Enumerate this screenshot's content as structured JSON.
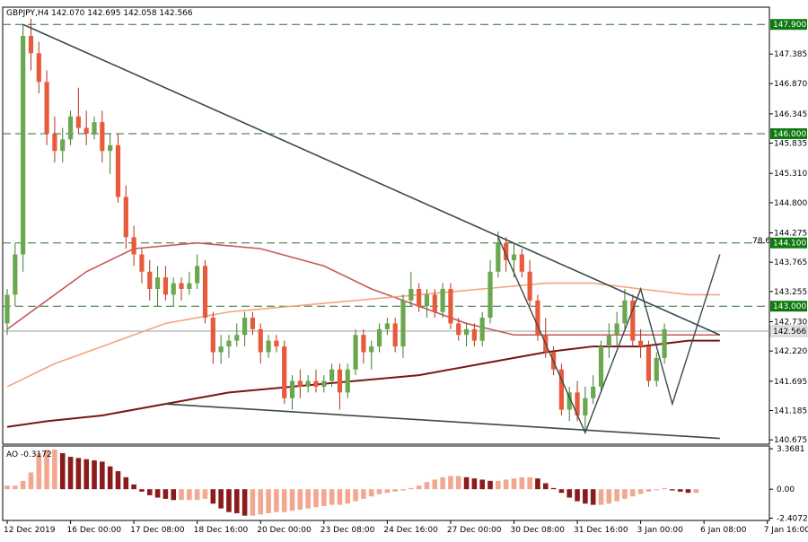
{
  "chart_data": {
    "type": "candlestick",
    "title": "GBPJPY,H4 142.070 142.695 142.058 142.566",
    "symbol": "GBPJPY",
    "timeframe": "H4",
    "ohlc_header": {
      "open": 142.07,
      "high": 142.695,
      "low": 142.058,
      "close": 142.566
    },
    "current_price": 142.566,
    "current_price_label": "142.566",
    "ylim": [
      140.6,
      148.2
    ],
    "colors": {
      "bull": "#6aa84f",
      "bear": "#e85a3c",
      "bull_dark": "#3d7a2a",
      "bear_dark": "#b0331c",
      "ma_slow": "#7a1515",
      "ma_mid": "#c85858",
      "ma_fast": "#f2a57e",
      "level_line": "#2e6b2e",
      "trendline": "#3a4a4a",
      "ao_up": "#f2a890",
      "ao_down": "#8b1a1a",
      "badge_green": "#0f7a0f",
      "badge_gray": "#e4e4e4"
    },
    "price_axis_ticks": [
      "147.385",
      "146.870",
      "146.345",
      "145.835",
      "145.310",
      "144.800",
      "144.275",
      "143.765",
      "143.255",
      "142.730",
      "142.220",
      "141.695",
      "141.185",
      "140.675"
    ],
    "price_axis_values": [
      147.385,
      146.87,
      146.345,
      145.835,
      145.31,
      144.8,
      144.275,
      143.765,
      143.255,
      142.73,
      142.22,
      141.695,
      141.185,
      140.675
    ],
    "time_axis_labels": [
      "12 Dec 2019",
      "16 Dec 00:00",
      "17 Dec 08:00",
      "18 Dec 16:00",
      "20 Dec 00:00",
      "23 Dec 08:00",
      "24 Dec 16:00",
      "27 Dec 00:00",
      "30 Dec 08:00",
      "31 Dec 16:00",
      "3 Jan 00:00",
      "6 Jan 08:00",
      "7 Jan 16:00"
    ],
    "time_axis_label_index": [
      0,
      8,
      16,
      24,
      32,
      40,
      48,
      56,
      64,
      72,
      80,
      88,
      96
    ],
    "levels": [
      {
        "value": 147.9,
        "label": "147.900"
      },
      {
        "value": 146.0,
        "label": "146.000"
      },
      {
        "value": 144.1,
        "label": "144.100"
      },
      {
        "value": 143.0,
        "label": "143.000"
      }
    ],
    "fib_label": "78.6",
    "fib_level": 144.1,
    "candles": [
      {
        "o": 142.7,
        "h": 143.3,
        "l": 142.5,
        "c": 143.2
      },
      {
        "o": 143.2,
        "h": 144.1,
        "l": 143.0,
        "c": 143.9
      },
      {
        "o": 143.9,
        "h": 147.9,
        "l": 143.6,
        "c": 147.7
      },
      {
        "o": 147.7,
        "h": 148.0,
        "l": 147.1,
        "c": 147.4
      },
      {
        "o": 147.4,
        "h": 147.6,
        "l": 146.7,
        "c": 146.9
      },
      {
        "o": 146.9,
        "h": 147.1,
        "l": 145.8,
        "c": 146.0
      },
      {
        "o": 146.0,
        "h": 146.3,
        "l": 145.5,
        "c": 145.7
      },
      {
        "o": 145.7,
        "h": 146.1,
        "l": 145.5,
        "c": 145.9
      },
      {
        "o": 145.9,
        "h": 146.4,
        "l": 145.8,
        "c": 146.3
      },
      {
        "o": 146.3,
        "h": 146.8,
        "l": 146.0,
        "c": 146.1
      },
      {
        "o": 146.1,
        "h": 146.4,
        "l": 145.8,
        "c": 146.0
      },
      {
        "o": 146.0,
        "h": 146.3,
        "l": 145.9,
        "c": 146.2
      },
      {
        "o": 146.2,
        "h": 146.4,
        "l": 145.5,
        "c": 145.7
      },
      {
        "o": 145.7,
        "h": 146.0,
        "l": 145.3,
        "c": 145.8
      },
      {
        "o": 145.8,
        "h": 146.0,
        "l": 144.8,
        "c": 144.9
      },
      {
        "o": 144.9,
        "h": 145.1,
        "l": 144.0,
        "c": 144.2
      },
      {
        "o": 144.2,
        "h": 144.4,
        "l": 143.7,
        "c": 143.9
      },
      {
        "o": 143.9,
        "h": 144.0,
        "l": 143.4,
        "c": 143.6
      },
      {
        "o": 143.6,
        "h": 143.8,
        "l": 143.1,
        "c": 143.3
      },
      {
        "o": 143.3,
        "h": 143.7,
        "l": 143.0,
        "c": 143.5
      },
      {
        "o": 143.5,
        "h": 143.7,
        "l": 143.1,
        "c": 143.2
      },
      {
        "o": 143.2,
        "h": 143.5,
        "l": 143.0,
        "c": 143.4
      },
      {
        "o": 143.4,
        "h": 143.5,
        "l": 143.1,
        "c": 143.3
      },
      {
        "o": 143.3,
        "h": 143.6,
        "l": 143.2,
        "c": 143.4
      },
      {
        "o": 143.4,
        "h": 143.9,
        "l": 143.3,
        "c": 143.7
      },
      {
        "o": 143.7,
        "h": 143.8,
        "l": 142.7,
        "c": 142.8
      },
      {
        "o": 142.8,
        "h": 142.9,
        "l": 142.0,
        "c": 142.2
      },
      {
        "o": 142.2,
        "h": 142.5,
        "l": 142.0,
        "c": 142.3
      },
      {
        "o": 142.3,
        "h": 142.5,
        "l": 142.1,
        "c": 142.4
      },
      {
        "o": 142.4,
        "h": 142.7,
        "l": 142.3,
        "c": 142.5
      },
      {
        "o": 142.5,
        "h": 142.9,
        "l": 142.3,
        "c": 142.8
      },
      {
        "o": 142.8,
        "h": 142.9,
        "l": 142.5,
        "c": 142.6
      },
      {
        "o": 142.6,
        "h": 142.7,
        "l": 142.0,
        "c": 142.2
      },
      {
        "o": 142.2,
        "h": 142.5,
        "l": 142.1,
        "c": 142.4
      },
      {
        "o": 142.4,
        "h": 142.5,
        "l": 142.2,
        "c": 142.3
      },
      {
        "o": 142.3,
        "h": 142.4,
        "l": 141.3,
        "c": 141.4
      },
      {
        "o": 141.4,
        "h": 141.8,
        "l": 141.2,
        "c": 141.7
      },
      {
        "o": 141.7,
        "h": 141.9,
        "l": 141.4,
        "c": 141.6
      },
      {
        "o": 141.6,
        "h": 141.8,
        "l": 141.5,
        "c": 141.7
      },
      {
        "o": 141.7,
        "h": 141.9,
        "l": 141.5,
        "c": 141.6
      },
      {
        "o": 141.6,
        "h": 141.8,
        "l": 141.5,
        "c": 141.7
      },
      {
        "o": 141.7,
        "h": 142.0,
        "l": 141.6,
        "c": 141.9
      },
      {
        "o": 141.9,
        "h": 142.0,
        "l": 141.2,
        "c": 141.5
      },
      {
        "o": 141.5,
        "h": 142.0,
        "l": 141.4,
        "c": 141.9
      },
      {
        "o": 141.9,
        "h": 142.6,
        "l": 141.8,
        "c": 142.5
      },
      {
        "o": 142.5,
        "h": 142.6,
        "l": 142.0,
        "c": 142.2
      },
      {
        "o": 142.2,
        "h": 142.4,
        "l": 141.9,
        "c": 142.3
      },
      {
        "o": 142.3,
        "h": 142.7,
        "l": 142.2,
        "c": 142.6
      },
      {
        "o": 142.6,
        "h": 142.8,
        "l": 142.5,
        "c": 142.7
      },
      {
        "o": 142.7,
        "h": 142.8,
        "l": 142.2,
        "c": 142.3
      },
      {
        "o": 142.3,
        "h": 143.2,
        "l": 142.1,
        "c": 143.1
      },
      {
        "o": 143.1,
        "h": 143.6,
        "l": 143.0,
        "c": 143.3
      },
      {
        "o": 143.3,
        "h": 143.4,
        "l": 142.9,
        "c": 143.0
      },
      {
        "o": 143.0,
        "h": 143.3,
        "l": 142.8,
        "c": 143.2
      },
      {
        "o": 143.2,
        "h": 143.3,
        "l": 142.8,
        "c": 142.9
      },
      {
        "o": 142.9,
        "h": 143.4,
        "l": 142.8,
        "c": 143.3
      },
      {
        "o": 143.3,
        "h": 143.4,
        "l": 142.6,
        "c": 142.7
      },
      {
        "o": 142.7,
        "h": 142.8,
        "l": 142.4,
        "c": 142.5
      },
      {
        "o": 142.5,
        "h": 142.7,
        "l": 142.3,
        "c": 142.6
      },
      {
        "o": 142.6,
        "h": 142.7,
        "l": 142.3,
        "c": 142.4
      },
      {
        "o": 142.4,
        "h": 142.9,
        "l": 142.3,
        "c": 142.8
      },
      {
        "o": 142.8,
        "h": 143.8,
        "l": 142.7,
        "c": 143.6
      },
      {
        "o": 143.6,
        "h": 144.3,
        "l": 143.5,
        "c": 144.1
      },
      {
        "o": 144.1,
        "h": 144.2,
        "l": 143.6,
        "c": 143.8
      },
      {
        "o": 143.8,
        "h": 144.1,
        "l": 143.5,
        "c": 143.9
      },
      {
        "o": 143.9,
        "h": 144.0,
        "l": 143.5,
        "c": 143.6
      },
      {
        "o": 143.6,
        "h": 143.8,
        "l": 143.0,
        "c": 143.1
      },
      {
        "o": 143.1,
        "h": 143.2,
        "l": 142.4,
        "c": 142.5
      },
      {
        "o": 142.5,
        "h": 142.8,
        "l": 142.1,
        "c": 142.2
      },
      {
        "o": 142.2,
        "h": 142.3,
        "l": 141.8,
        "c": 141.9
      },
      {
        "o": 141.9,
        "h": 142.0,
        "l": 141.1,
        "c": 141.2
      },
      {
        "o": 141.2,
        "h": 141.6,
        "l": 141.0,
        "c": 141.5
      },
      {
        "o": 141.5,
        "h": 141.7,
        "l": 141.0,
        "c": 141.1
      },
      {
        "o": 141.1,
        "h": 141.6,
        "l": 140.8,
        "c": 141.4
      },
      {
        "o": 141.4,
        "h": 141.8,
        "l": 141.3,
        "c": 141.6
      },
      {
        "o": 141.6,
        "h": 142.4,
        "l": 141.5,
        "c": 142.3
      },
      {
        "o": 142.3,
        "h": 142.7,
        "l": 142.1,
        "c": 142.5
      },
      {
        "o": 142.5,
        "h": 142.9,
        "l": 142.3,
        "c": 142.7
      },
      {
        "o": 142.7,
        "h": 143.3,
        "l": 142.6,
        "c": 143.1
      },
      {
        "o": 143.1,
        "h": 143.2,
        "l": 142.3,
        "c": 142.4
      },
      {
        "o": 142.4,
        "h": 142.6,
        "l": 142.1,
        "c": 142.3
      },
      {
        "o": 142.3,
        "h": 142.4,
        "l": 141.6,
        "c": 141.7
      },
      {
        "o": 141.7,
        "h": 142.2,
        "l": 141.6,
        "c": 142.1
      },
      {
        "o": 142.1,
        "h": 142.7,
        "l": 142.0,
        "c": 142.6
      }
    ],
    "moving_averages": [
      {
        "name": "",
        "color_key": "ma_slow",
        "points": [
          [
            0,
            140.9
          ],
          [
            5,
            141.0
          ],
          [
            12,
            141.1
          ],
          [
            20,
            141.3
          ],
          [
            28,
            141.5
          ],
          [
            36,
            141.6
          ],
          [
            44,
            141.7
          ],
          [
            52,
            141.8
          ],
          [
            60,
            142.0
          ],
          [
            68,
            142.2
          ],
          [
            74,
            142.3
          ],
          [
            80,
            142.3
          ],
          [
            86,
            142.4
          ],
          [
            90,
            142.4
          ]
        ]
      },
      {
        "name": "",
        "color_key": "ma_mid",
        "points": [
          [
            0,
            142.6
          ],
          [
            5,
            143.1
          ],
          [
            10,
            143.6
          ],
          [
            16,
            144.0
          ],
          [
            24,
            144.1
          ],
          [
            32,
            144.0
          ],
          [
            40,
            143.7
          ],
          [
            46,
            143.3
          ],
          [
            52,
            143.0
          ],
          [
            58,
            142.7
          ],
          [
            64,
            142.5
          ],
          [
            70,
            142.5
          ],
          [
            76,
            142.5
          ],
          [
            82,
            142.5
          ],
          [
            86,
            142.5
          ],
          [
            90,
            142.5
          ]
        ]
      },
      {
        "name": "",
        "color_key": "ma_fast",
        "points": [
          [
            0,
            141.6
          ],
          [
            6,
            142.0
          ],
          [
            12,
            142.3
          ],
          [
            20,
            142.7
          ],
          [
            28,
            142.9
          ],
          [
            36,
            143.0
          ],
          [
            44,
            143.1
          ],
          [
            52,
            143.2
          ],
          [
            60,
            143.3
          ],
          [
            68,
            143.4
          ],
          [
            74,
            143.4
          ],
          [
            80,
            143.3
          ],
          [
            86,
            143.2
          ],
          [
            90,
            143.2
          ]
        ]
      }
    ],
    "trendlines": [
      {
        "from": [
          2,
          147.9
        ],
        "to": [
          90,
          142.5
        ]
      },
      {
        "from": [
          20,
          141.3
        ],
        "to": [
          90,
          140.7
        ]
      }
    ],
    "wave_lines": [
      [
        [
          62,
          144.2
        ],
        [
          73,
          140.8
        ],
        [
          80,
          143.3
        ],
        [
          84,
          141.3
        ],
        [
          90,
          143.9
        ]
      ]
    ],
    "ao": {
      "label": "AO -0.3172",
      "ticks": [
        "3.3681",
        "0.00",
        "-2.4072"
      ],
      "tick_values": [
        3.3681,
        0.0,
        -2.4072
      ],
      "ylim": [
        -2.6,
        3.6
      ],
      "values": [
        0.3,
        0.3,
        0.7,
        1.4,
        3.0,
        3.3,
        3.3,
        3.0,
        2.7,
        2.6,
        2.5,
        2.4,
        2.3,
        1.9,
        1.5,
        1.0,
        0.4,
        -0.2,
        -0.5,
        -0.7,
        -0.8,
        -0.9,
        -0.9,
        -0.9,
        -0.9,
        -0.8,
        -1.2,
        -1.6,
        -1.9,
        -2.0,
        -2.2,
        -2.2,
        -2.1,
        -2.0,
        -1.9,
        -1.9,
        -1.8,
        -1.7,
        -1.6,
        -1.5,
        -1.4,
        -1.3,
        -1.3,
        -1.2,
        -1.0,
        -0.8,
        -0.6,
        -0.4,
        -0.3,
        -0.2,
        -0.1,
        0.1,
        0.3,
        0.6,
        0.8,
        1.0,
        1.1,
        1.1,
        1.0,
        0.9,
        0.8,
        0.7,
        0.7,
        0.8,
        0.9,
        1.0,
        1.0,
        0.9,
        0.5,
        0.1,
        -0.3,
        -0.7,
        -1.0,
        -1.2,
        -1.3,
        -1.3,
        -1.2,
        -1.0,
        -0.8,
        -0.6,
        -0.4,
        -0.2,
        0.0,
        0.1,
        -0.1,
        -0.2,
        -0.3,
        -0.3
      ]
    }
  }
}
